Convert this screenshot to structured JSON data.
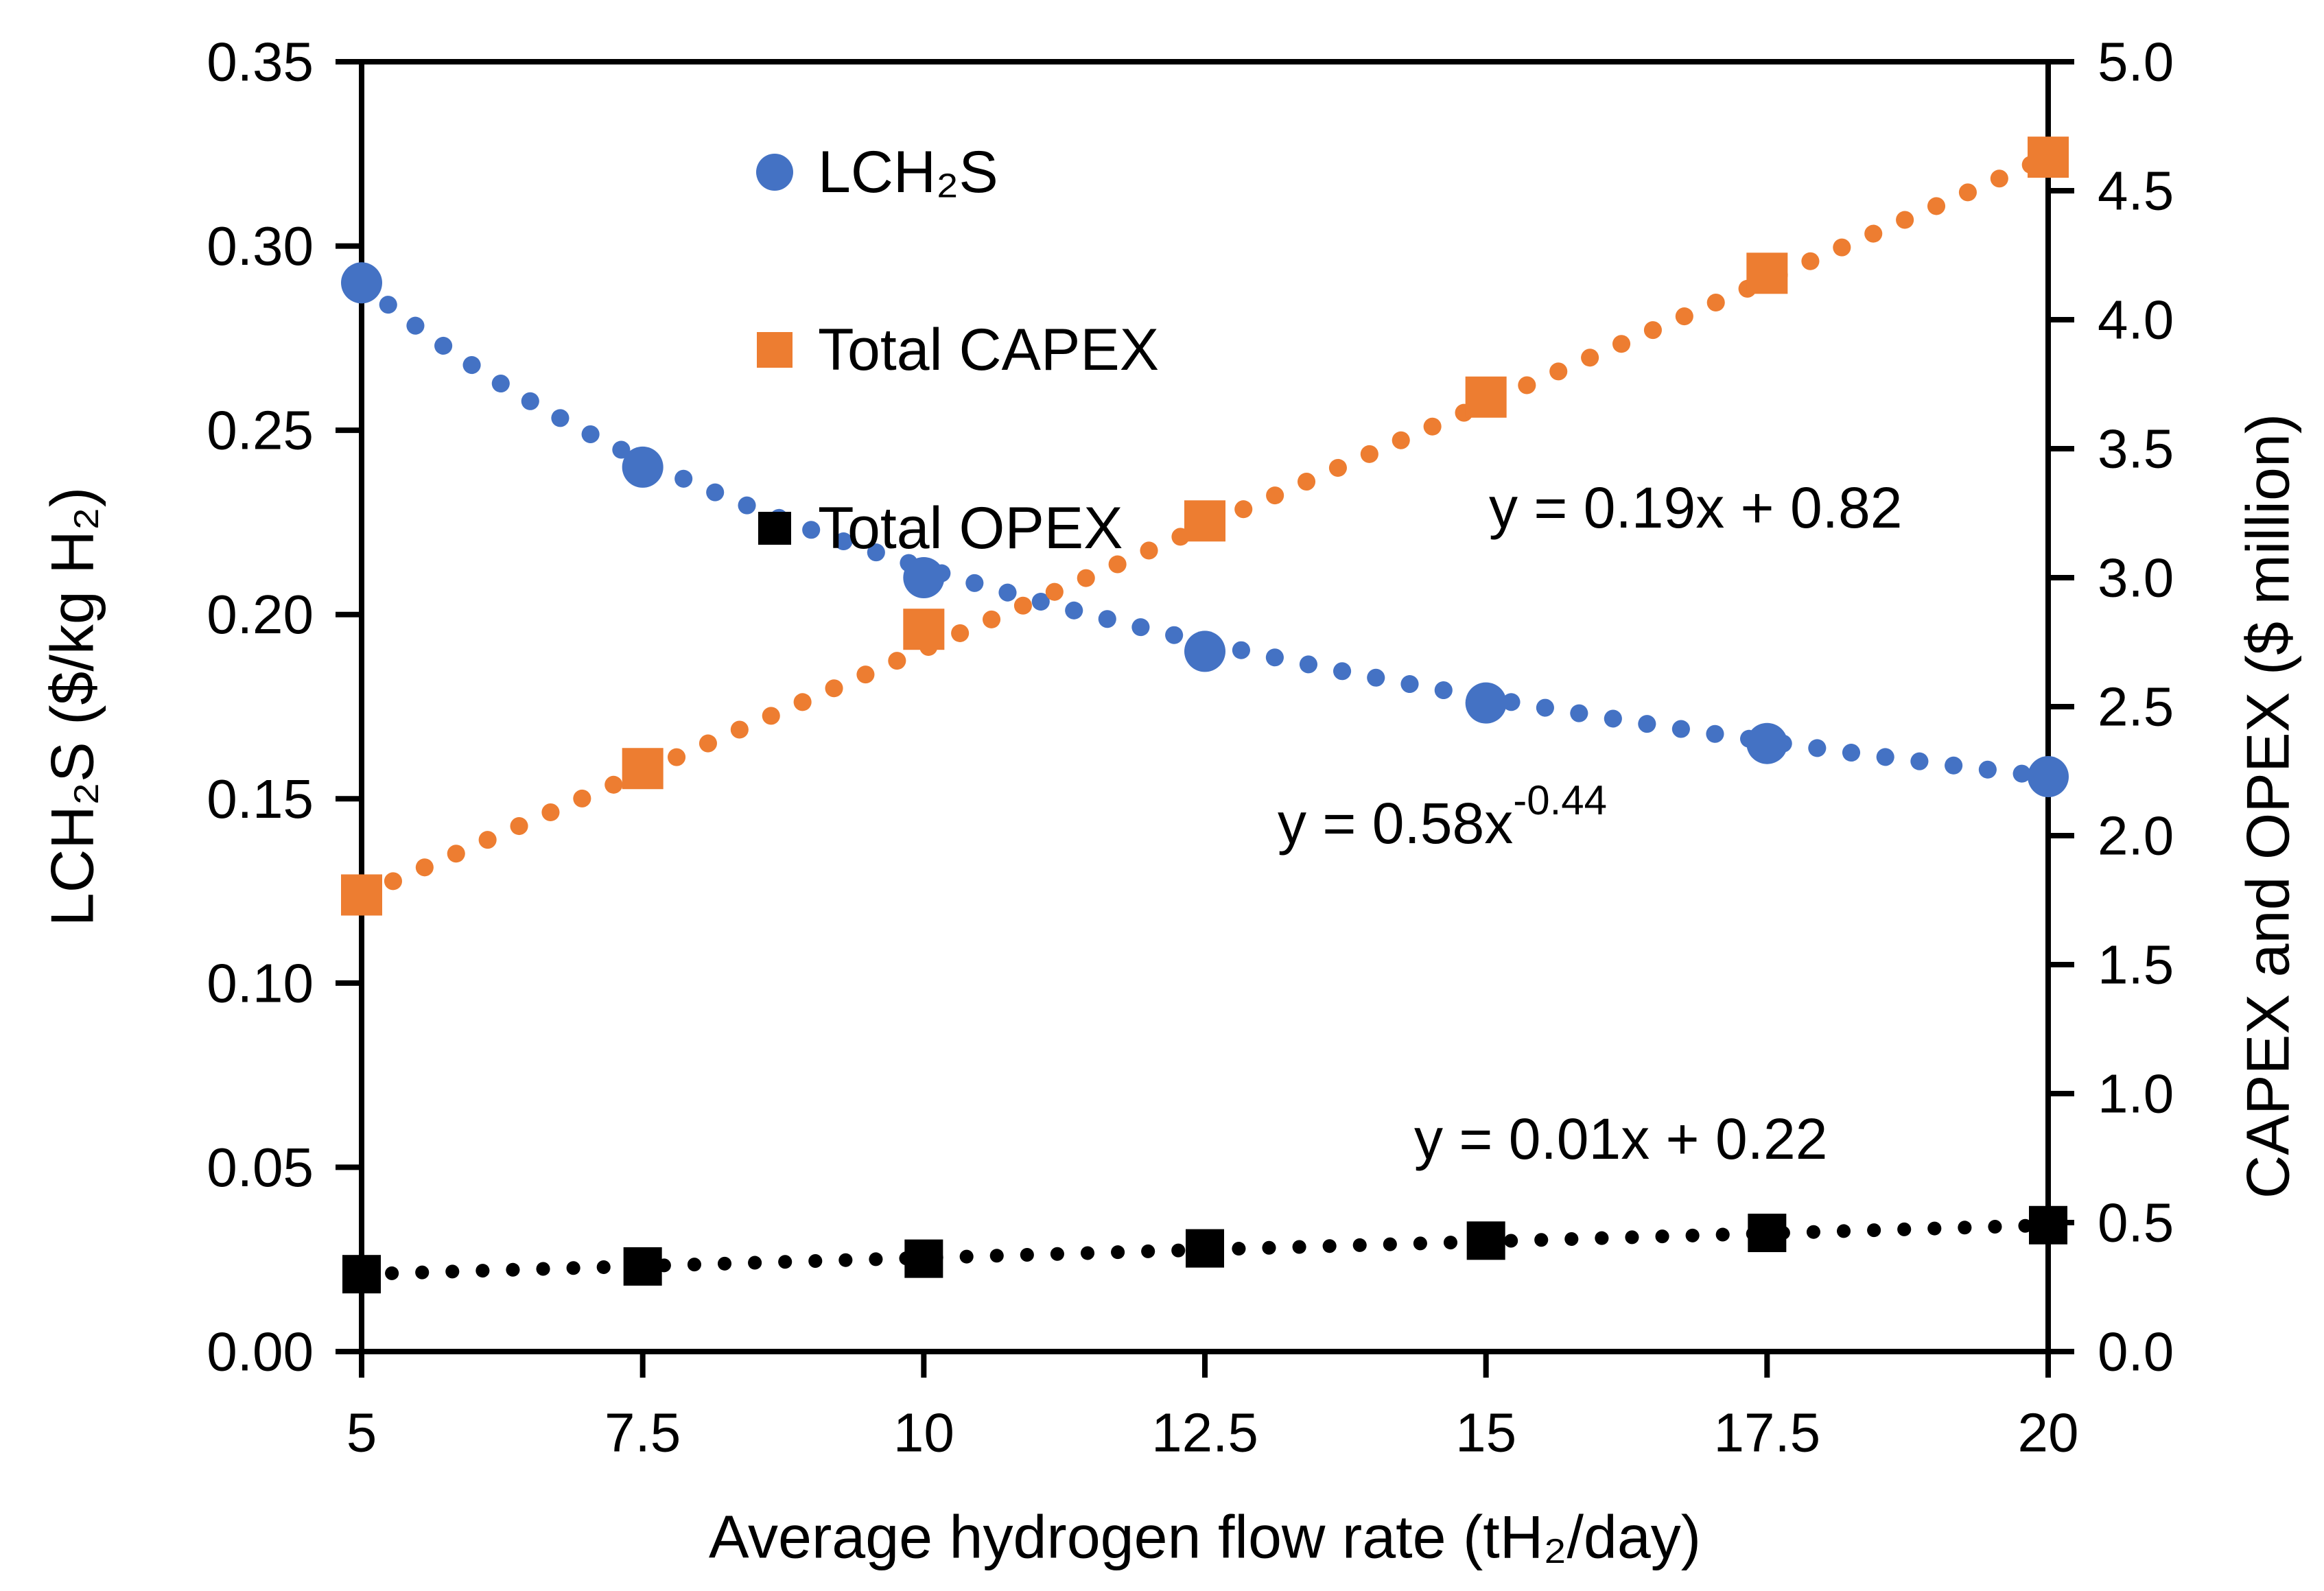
{
  "chart_data": {
    "type": "scatter",
    "x": [
      5,
      7.5,
      10,
      12.5,
      15,
      17.5,
      20
    ],
    "x_axis": {
      "title": "Average hydrogen flow rate (tH₂/day)",
      "min": 5,
      "max": 20,
      "tick_labels": [
        "5",
        "7.5",
        "10",
        "12.5",
        "15",
        "17.5",
        "20"
      ]
    },
    "left_axis": {
      "title": "LCH₂S ($/kg H₂)",
      "min": 0,
      "max": 0.35,
      "tick_labels": [
        "0.00",
        "0.05",
        "0.10",
        "0.15",
        "0.20",
        "0.25",
        "0.30",
        "0.35"
      ]
    },
    "right_axis": {
      "title": "CAPEX and OPEX ($ million)",
      "min": 0,
      "max": 5,
      "tick_labels": [
        "0.0",
        "0.5",
        "1.0",
        "1.5",
        "2.0",
        "2.5",
        "3.0",
        "3.5",
        "4.0",
        "4.5",
        "5.0"
      ]
    },
    "grid": false,
    "legend_position": "upper-center-left-stacked",
    "series": [
      {
        "name": "LCH₂S",
        "axis": "left",
        "marker": "circle",
        "color": "#4472C4",
        "values": [
          0.29,
          0.24,
          0.21,
          0.19,
          0.176,
          0.165,
          0.156
        ],
        "trendline": {
          "kind": "power",
          "label_base": "y = 0.58x",
          "label_exp": "-0.44"
        }
      },
      {
        "name": "Total CAPEX",
        "axis": "right",
        "marker": "square",
        "color": "#ED7D31",
        "values": [
          1.77,
          2.26,
          2.8,
          3.22,
          3.7,
          4.18,
          4.63
        ],
        "trendline": {
          "kind": "linear",
          "label": "y = 0.19x + 0.82"
        }
      },
      {
        "name": "Total OPEX",
        "axis": "right",
        "marker": "square",
        "color": "#000000",
        "values": [
          0.3,
          0.33,
          0.36,
          0.4,
          0.43,
          0.46,
          0.49
        ],
        "trendline": {
          "kind": "linear",
          "label": "y = 0.01x + 0.22"
        }
      }
    ]
  }
}
